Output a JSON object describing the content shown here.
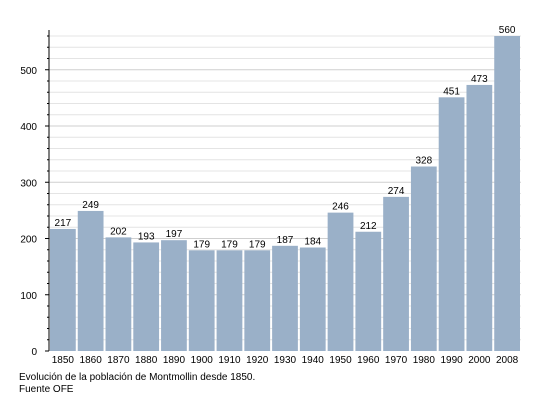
{
  "chart_data": {
    "type": "bar",
    "categories": [
      "1850",
      "1860",
      "1870",
      "1880",
      "1890",
      "1900",
      "1910",
      "1920",
      "1930",
      "1940",
      "1950",
      "1960",
      "1970",
      "1980",
      "1990",
      "2000",
      "2008"
    ],
    "values": [
      217,
      249,
      202,
      193,
      197,
      179,
      179,
      179,
      187,
      184,
      246,
      212,
      274,
      328,
      451,
      473,
      560
    ],
    "data_labels": [
      "217",
      "249",
      "202",
      "193",
      "197",
      "179",
      "179",
      "179",
      "187",
      "184",
      "246",
      "212",
      "274",
      "328",
      "451",
      "473",
      "560"
    ],
    "y_ticks": [
      "0",
      "100",
      "200",
      "300",
      "400",
      "500"
    ],
    "ylim": [
      0,
      560
    ],
    "grid": true,
    "title": "",
    "xlabel": "",
    "ylabel": "",
    "bar_color": "#9ab0c8",
    "grid_color": "#d9d9d9"
  },
  "caption": {
    "line1": "Evolución de la población de Montmollin desde 1850.",
    "line2": "Fuente OFE"
  }
}
